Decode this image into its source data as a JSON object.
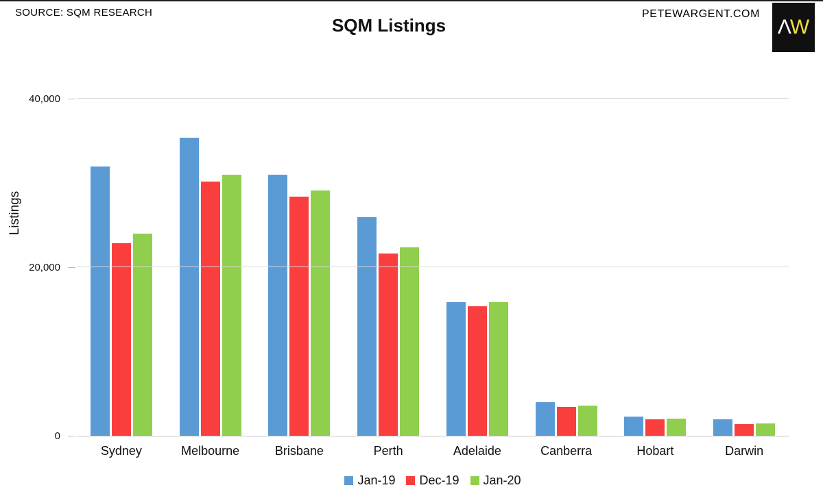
{
  "header": {
    "source": "SOURCE: SQM RESEARCH",
    "site": "PETEWARGENT.COM",
    "logo": {
      "lambda": "Λ",
      "w": "W",
      "bg": "#101010",
      "lambda_color": "#ffffff",
      "w_color": "#f2de3c"
    }
  },
  "chart_data": {
    "type": "bar",
    "title": "SQM Listings",
    "xlabel": "",
    "ylabel": "Listings",
    "ylim": [
      0,
      40000
    ],
    "yticks": [
      {
        "value": 0,
        "label": "0"
      },
      {
        "value": 20000,
        "label": "20,000"
      },
      {
        "value": 40000,
        "label": "40,000"
      }
    ],
    "grid": "horizontal-light",
    "legend_position": "bottom-center",
    "categories": [
      "Sydney",
      "Melbourne",
      "Brisbane",
      "Perth",
      "Adelaide",
      "Canberra",
      "Hobart",
      "Darwin"
    ],
    "series": [
      {
        "name": "Jan-19",
        "color": "#5B9BD5",
        "values": [
          32000,
          35400,
          31000,
          26000,
          15900,
          4000,
          2300,
          1950
        ]
      },
      {
        "name": "Dec-19",
        "color": "#FA3E3E",
        "values": [
          22900,
          30200,
          28400,
          21700,
          15400,
          3450,
          1950,
          1400
        ]
      },
      {
        "name": "Jan-20",
        "color": "#90CF4E",
        "values": [
          24000,
          31000,
          29200,
          22400,
          15900,
          3550,
          2050,
          1500
        ]
      }
    ]
  }
}
